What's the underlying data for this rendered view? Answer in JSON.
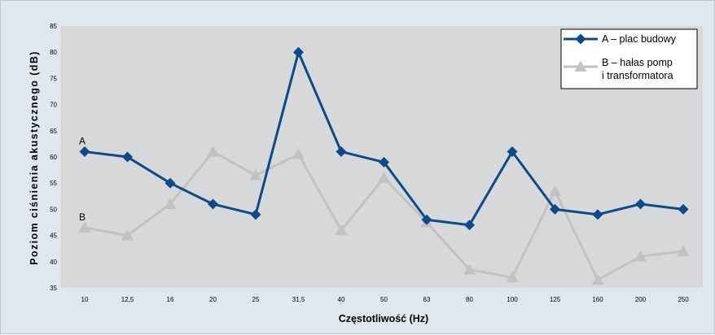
{
  "chart_data": {
    "type": "line",
    "xlabel": "Częstotliwość (Hz)",
    "ylabel": "Poziom ciśnienia akustycznego (dB)",
    "ylim": [
      35,
      85
    ],
    "yticks": [
      35,
      40,
      45,
      50,
      55,
      60,
      65,
      70,
      75,
      80,
      85
    ],
    "categories": [
      "10",
      "12,5",
      "16",
      "20",
      "25",
      "31,5",
      "40",
      "50",
      "63",
      "80",
      "100",
      "125",
      "160",
      "200",
      "250"
    ],
    "grid": false,
    "legend_position": "top-right",
    "series": [
      {
        "name": "A – plac budowy",
        "marker": "diamond",
        "color": "#0d4a8a",
        "end_label": "A",
        "values": [
          61,
          60,
          55,
          51,
          49,
          80,
          61,
          59,
          48,
          47,
          61,
          50,
          49,
          51,
          50
        ]
      },
      {
        "name": "B – hałas pomp i transformatora",
        "legend_lines": [
          "B – hałas pomp",
          "i transformatora"
        ],
        "marker": "triangle",
        "color": "#c2c2c2",
        "end_label": "B",
        "values": [
          46.5,
          45,
          51,
          61,
          56.5,
          60.5,
          46,
          56,
          47.5,
          38.5,
          37,
          53.5,
          36.5,
          41,
          42
        ]
      }
    ]
  },
  "colors": {
    "plot_background": "#d7d8d9",
    "frame_background": "#dfe8ef"
  }
}
